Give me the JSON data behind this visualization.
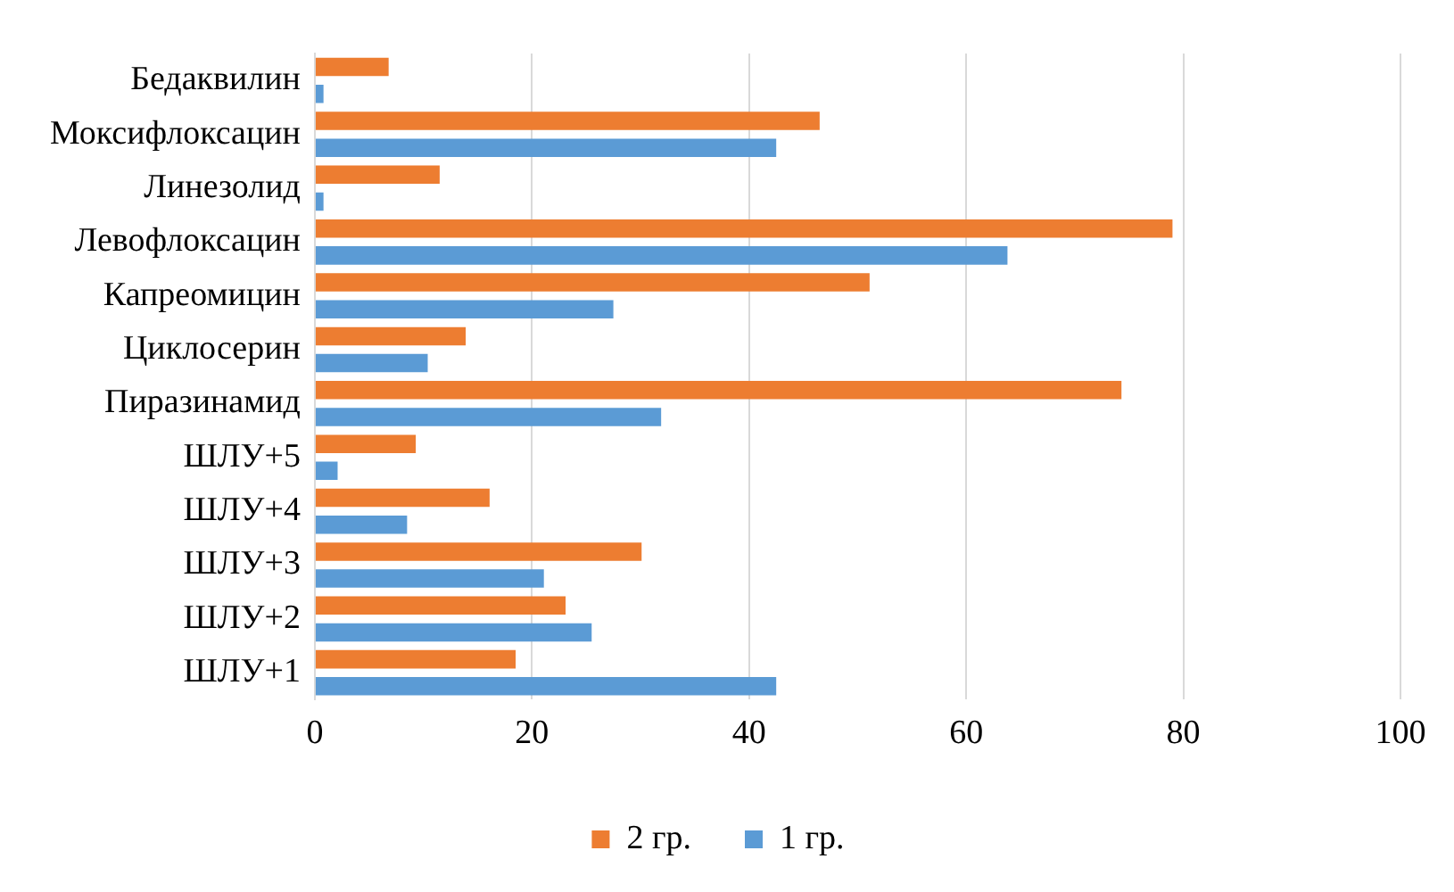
{
  "chart_data": {
    "type": "bar",
    "orientation": "horizontal",
    "categories": [
      "Бедаквилин",
      "Моксифлоксацин",
      "Линезолид",
      "Левофлоксацин",
      "Капреомицин",
      "Циклосерин",
      "Пиразинамид",
      "ШЛУ+5",
      "ШЛУ+4",
      "ШЛУ+3",
      "ШЛУ+2",
      "ШЛУ+1"
    ],
    "series": [
      {
        "name": "2 гр.",
        "color": "#ed7d31",
        "values": [
          6.8,
          46.5,
          11.5,
          79,
          51.1,
          13.9,
          74.3,
          9.3,
          16.1,
          30.1,
          23.1,
          18.5
        ]
      },
      {
        "name": "1 гр.",
        "color": "#5b9bd5",
        "values": [
          0.8,
          42.5,
          0.8,
          63.8,
          27.5,
          10.4,
          31.9,
          2.1,
          8.5,
          21.1,
          25.5,
          42.5
        ]
      }
    ],
    "xlim": [
      0,
      100
    ],
    "xticks": [
      0,
      20,
      40,
      60,
      80,
      100
    ],
    "grid": "x",
    "legend": "bottom"
  }
}
